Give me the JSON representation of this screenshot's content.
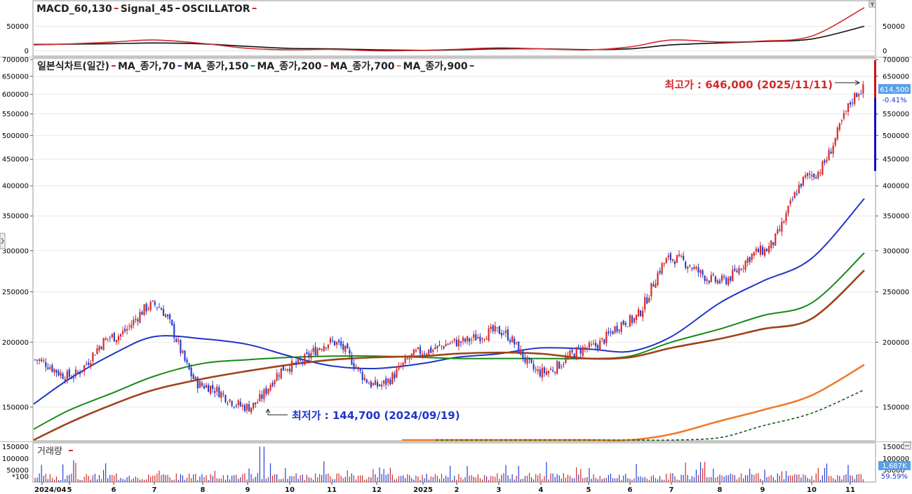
{
  "colors": {
    "up": "#d42a2a",
    "down": "#2840d0",
    "ma70": "#d42a2a",
    "ma150": "#1f35c8",
    "ma200": "#178a17",
    "ma700": "#a0431a",
    "ma900": "#f07a2a",
    "dashed": "#1b5a1b",
    "macd": "#d42a2a",
    "signal": "#111111",
    "volume_up": "#d42a2a",
    "volume_down": "#2840d0",
    "grid": "#e8e8e8",
    "accent_bar_red": "#d01010",
    "accent_bar_blue": "#1010c0"
  },
  "macd_panel": {
    "legend": [
      {
        "text": "MACD_60,130",
        "color": "#d42a2a"
      },
      {
        "text": "Signal_45",
        "color": "#111111"
      },
      {
        "text": "OSCILLATOR",
        "color": "#d42a2a"
      }
    ],
    "left_ticks": [
      "50000",
      "0"
    ],
    "right_ticks": [
      "50000",
      "0"
    ]
  },
  "price_panel": {
    "legend": [
      {
        "text": "일본식차트(일간)",
        "color": "#d42a2a"
      },
      {
        "text": "MA_종가,70",
        "color": "#1f35c8"
      },
      {
        "text": "MA_종가,150",
        "color": "#178a17"
      },
      {
        "text": "MA_종가,200",
        "color": "#a0431a"
      },
      {
        "text": "MA_종가,700",
        "color": "#f07a2a"
      },
      {
        "text": "MA_종가,900",
        "color": "#1b5a1b"
      }
    ],
    "left_ticks": [
      "700000",
      "650000",
      "600000",
      "550000",
      "500000",
      "450000",
      "400000",
      "350000",
      "300000",
      "250000",
      "200000",
      "150000"
    ],
    "right_ticks": [
      "700000",
      "650000",
      "550000",
      "500000",
      "450000",
      "400000",
      "350000",
      "300000",
      "250000",
      "200000",
      "150000"
    ],
    "high_label": "최고가 : 646,000 (2025/11/11)",
    "low_label": "최저가 : 144,700 (2024/09/19)",
    "current_price": "614,500",
    "current_change": "-0.41%"
  },
  "volume_panel": {
    "legend": "거래량",
    "left_ticks": [
      "150000",
      "100000",
      "50000",
      "*100"
    ],
    "right_ticks": [
      "150000",
      "100000",
      "50000"
    ],
    "current_volume": "1,687K",
    "current_pct": "59.59%"
  },
  "x_axis": {
    "labels": [
      "2024/04",
      "5",
      "6",
      "7",
      "8",
      "9",
      "10",
      "11",
      "12",
      "2025",
      "2",
      "3",
      "4",
      "5",
      "6",
      "7",
      "8",
      "9",
      "10",
      "11"
    ]
  },
  "chart_data": {
    "type": "candlestick",
    "price_scale": "log",
    "ylim": [
      130000,
      700000
    ],
    "title": "",
    "xlabel": "",
    "ylabel": "",
    "price_anchors": [
      [
        "2024/04",
        185000
      ],
      [
        "5",
        172000
      ],
      [
        "6",
        205000
      ],
      [
        "7",
        236000
      ],
      [
        "8",
        165000
      ],
      [
        "9",
        150000
      ],
      [
        "10",
        180000
      ],
      [
        "11",
        200000
      ],
      [
        "12",
        165000
      ],
      [
        "2025",
        192000
      ],
      [
        "2",
        200000
      ],
      [
        "3",
        210000
      ],
      [
        "4",
        175000
      ],
      [
        "5",
        195000
      ],
      [
        "6",
        220000
      ],
      [
        "7",
        290000
      ],
      [
        "8",
        262000
      ],
      [
        "9",
        300000
      ],
      [
        "10",
        420000
      ],
      [
        "11",
        614500
      ]
    ],
    "moving_averages": [
      {
        "name": "MA_종가,70",
        "values": [
          152000,
          170000,
          190000,
          205000,
          203000,
          198000,
          188000,
          180000,
          178000,
          182000,
          187000,
          190000,
          195000,
          194000,
          192000,
          205000,
          238000,
          262000,
          290000,
          378000
        ]
      },
      {
        "name": "MA_종가,150",
        "values": [
          136000,
          148000,
          160000,
          172000,
          182000,
          185000,
          187000,
          188000,
          188000,
          187000,
          186000,
          186000,
          186000,
          186000,
          188000,
          200000,
          212000,
          225000,
          238000,
          297000
        ]
      },
      {
        "name": "MA_종가,200",
        "values": [
          128000,
          140000,
          152000,
          162000,
          170000,
          176000,
          181000,
          185000,
          187000,
          188000,
          190000,
          191000,
          190000,
          186000,
          187000,
          195000,
          203000,
          212000,
          222000,
          275000
        ]
      },
      {
        "name": "MA_종가,700",
        "values": [
          null,
          null,
          null,
          null,
          null,
          null,
          null,
          null,
          null,
          110000,
          113000,
          116000,
          119000,
          122000,
          126000,
          133000,
          141000,
          148000,
          158000,
          181000
        ]
      },
      {
        "name": "MA_종가,900",
        "values": [
          null,
          null,
          null,
          null,
          null,
          null,
          null,
          null,
          null,
          null,
          107000,
          110000,
          113000,
          115000,
          118000,
          124000,
          131000,
          138000,
          146000,
          162000
        ]
      }
    ],
    "macd": {
      "x": [
        "2024/04",
        "5",
        "6",
        "7",
        "8",
        "9",
        "10",
        "11",
        "12",
        "2025",
        "2",
        "3",
        "4",
        "5",
        "6",
        "7",
        "8",
        "9",
        "10",
        "11"
      ],
      "macd": [
        12000,
        14000,
        18000,
        22000,
        15000,
        5000,
        2000,
        3000,
        0,
        1000,
        3000,
        6000,
        4000,
        2000,
        8000,
        22000,
        18000,
        20000,
        30000,
        88000
      ],
      "signal": [
        13000,
        13500,
        14500,
        16000,
        14000,
        9000,
        5000,
        4000,
        2000,
        1000,
        2000,
        4000,
        4000,
        2500,
        4000,
        12000,
        16000,
        19000,
        24000,
        50000
      ]
    },
    "current": {
      "price": 614500,
      "change_pct": -0.41,
      "volume": "1,687K"
    },
    "annotations": [
      {
        "text": "최고가 : 646,000 (2025/11/11)",
        "value": 646000
      },
      {
        "text": "최저가 : 144,700 (2024/09/19)",
        "value": 144700
      }
    ]
  }
}
